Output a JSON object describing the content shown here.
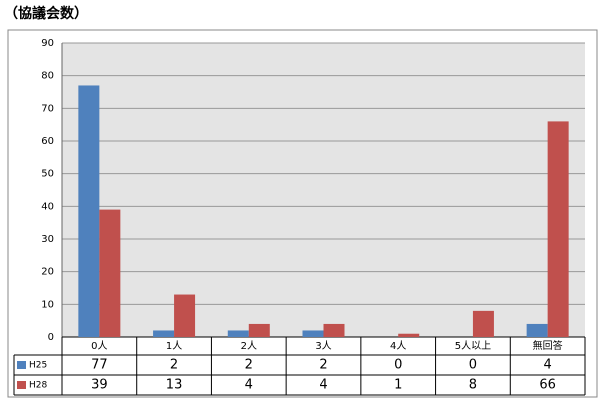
{
  "chart_data": {
    "type": "bar",
    "title": "（協議会数）",
    "categories": [
      "0人",
      "1人",
      "2人",
      "3人",
      "4人",
      "5人以上",
      "無回答"
    ],
    "series": [
      {
        "name": "H25",
        "color": "#4f81bd",
        "values": [
          77,
          2,
          2,
          2,
          0,
          0,
          4
        ]
      },
      {
        "name": "H28",
        "color": "#c0504d",
        "values": [
          39,
          13,
          4,
          4,
          1,
          8,
          66
        ]
      }
    ],
    "ylim": [
      0,
      90
    ],
    "yticks": [
      0,
      10,
      20,
      30,
      40,
      50,
      60,
      70,
      80,
      90
    ],
    "grid": true
  }
}
